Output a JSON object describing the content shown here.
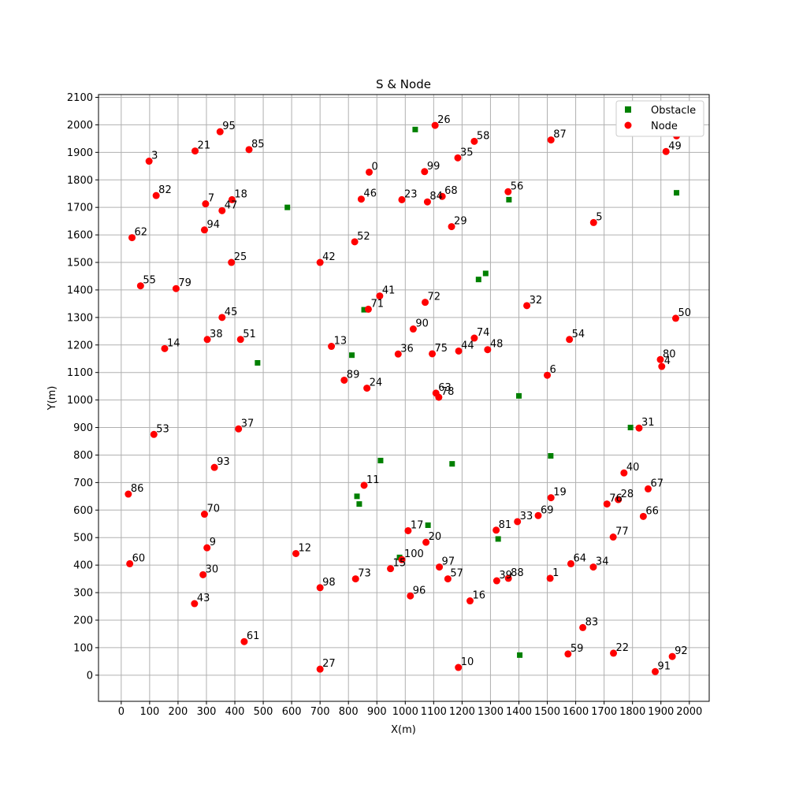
{
  "chart_data": {
    "type": "scatter",
    "title": "S & Node",
    "xlabel": "X(m)",
    "ylabel": "Y(m)",
    "xlim": [
      -80,
      2070
    ],
    "ylim": [
      -95,
      2110
    ],
    "xticks": [
      0,
      100,
      200,
      300,
      400,
      500,
      600,
      700,
      800,
      900,
      1000,
      1100,
      1200,
      1300,
      1400,
      1500,
      1600,
      1700,
      1800,
      1900,
      2000
    ],
    "yticks": [
      0,
      100,
      200,
      300,
      400,
      500,
      600,
      700,
      800,
      900,
      1000,
      1100,
      1200,
      1300,
      1400,
      1500,
      1600,
      1700,
      1800,
      1900,
      2000,
      2100
    ],
    "grid": true,
    "legend_position": "top-right",
    "series": [
      {
        "name": "Obstacle",
        "marker": "square",
        "color": "#008000",
        "points": [
          {
            "x": 1035,
            "y": 1983
          },
          {
            "x": 585,
            "y": 1700
          },
          {
            "x": 1365,
            "y": 1728
          },
          {
            "x": 1955,
            "y": 1753
          },
          {
            "x": 1283,
            "y": 1460
          },
          {
            "x": 1258,
            "y": 1438
          },
          {
            "x": 855,
            "y": 1328
          },
          {
            "x": 812,
            "y": 1163
          },
          {
            "x": 480,
            "y": 1135
          },
          {
            "x": 1400,
            "y": 1015
          },
          {
            "x": 1793,
            "y": 900
          },
          {
            "x": 913,
            "y": 780
          },
          {
            "x": 1165,
            "y": 768
          },
          {
            "x": 1512,
            "y": 797
          },
          {
            "x": 830,
            "y": 650
          },
          {
            "x": 838,
            "y": 622
          },
          {
            "x": 1080,
            "y": 545
          },
          {
            "x": 1327,
            "y": 495
          },
          {
            "x": 980,
            "y": 428
          },
          {
            "x": 1403,
            "y": 73
          }
        ]
      },
      {
        "name": "Node",
        "marker": "circle",
        "color": "#ff0000",
        "points": [
          {
            "id": "0",
            "x": 873,
            "y": 1828
          },
          {
            "id": "1",
            "x": 1510,
            "y": 352
          },
          {
            "id": "3",
            "x": 98,
            "y": 1868
          },
          {
            "id": "4",
            "x": 1903,
            "y": 1122
          },
          {
            "id": "5",
            "x": 1663,
            "y": 1645
          },
          {
            "id": "6",
            "x": 1500,
            "y": 1090
          },
          {
            "id": "7",
            "x": 297,
            "y": 1713
          },
          {
            "id": "9",
            "x": 302,
            "y": 463
          },
          {
            "id": "10",
            "x": 1187,
            "y": 28
          },
          {
            "id": "11",
            "x": 855,
            "y": 690
          },
          {
            "id": "12",
            "x": 615,
            "y": 442
          },
          {
            "id": "13",
            "x": 740,
            "y": 1195
          },
          {
            "id": "14",
            "x": 153,
            "y": 1187
          },
          {
            "id": "15",
            "x": 948,
            "y": 387
          },
          {
            "id": "16",
            "x": 1228,
            "y": 270
          },
          {
            "id": "17",
            "x": 1010,
            "y": 525
          },
          {
            "id": "18",
            "x": 390,
            "y": 1728
          },
          {
            "id": "19",
            "x": 1513,
            "y": 645
          },
          {
            "id": "20",
            "x": 1073,
            "y": 483
          },
          {
            "id": "21",
            "x": 260,
            "y": 1905
          },
          {
            "id": "22",
            "x": 1733,
            "y": 80
          },
          {
            "id": "23",
            "x": 988,
            "y": 1728
          },
          {
            "id": "24",
            "x": 865,
            "y": 1043
          },
          {
            "id": "25",
            "x": 388,
            "y": 1500
          },
          {
            "id": "26",
            "x": 1105,
            "y": 1998
          },
          {
            "id": "27",
            "x": 700,
            "y": 22
          },
          {
            "id": "28",
            "x": 1750,
            "y": 638
          },
          {
            "id": "29",
            "x": 1163,
            "y": 1630
          },
          {
            "id": "30",
            "x": 288,
            "y": 365
          },
          {
            "id": "31",
            "x": 1823,
            "y": 898
          },
          {
            "id": "32",
            "x": 1428,
            "y": 1343
          },
          {
            "id": "33",
            "x": 1395,
            "y": 558
          },
          {
            "id": "34",
            "x": 1662,
            "y": 393
          },
          {
            "id": "35",
            "x": 1185,
            "y": 1880
          },
          {
            "id": "36",
            "x": 975,
            "y": 1167
          },
          {
            "id": "37",
            "x": 413,
            "y": 895
          },
          {
            "id": "38",
            "x": 303,
            "y": 1220
          },
          {
            "id": "39",
            "x": 1322,
            "y": 343
          },
          {
            "id": "40",
            "x": 1770,
            "y": 735
          },
          {
            "id": "41",
            "x": 910,
            "y": 1378
          },
          {
            "id": "42",
            "x": 700,
            "y": 1500
          },
          {
            "id": "43",
            "x": 258,
            "y": 260
          },
          {
            "id": "44",
            "x": 1188,
            "y": 1178
          },
          {
            "id": "45",
            "x": 355,
            "y": 1300
          },
          {
            "id": "46",
            "x": 845,
            "y": 1730
          },
          {
            "id": "47",
            "x": 355,
            "y": 1688
          },
          {
            "id": "48",
            "x": 1290,
            "y": 1183
          },
          {
            "id": "49",
            "x": 1918,
            "y": 1903
          },
          {
            "id": "50",
            "x": 1952,
            "y": 1297
          },
          {
            "id": "51",
            "x": 420,
            "y": 1220
          },
          {
            "id": "52",
            "x": 822,
            "y": 1575
          },
          {
            "id": "53",
            "x": 115,
            "y": 875
          },
          {
            "id": "54",
            "x": 1578,
            "y": 1220
          },
          {
            "id": "55",
            "x": 68,
            "y": 1415
          },
          {
            "id": "56",
            "x": 1362,
            "y": 1757
          },
          {
            "id": "57",
            "x": 1150,
            "y": 350
          },
          {
            "id": "58",
            "x": 1243,
            "y": 1940
          },
          {
            "id": "59",
            "x": 1573,
            "y": 77
          },
          {
            "id": "60",
            "x": 30,
            "y": 405
          },
          {
            "id": "61",
            "x": 433,
            "y": 122
          },
          {
            "id": "62",
            "x": 38,
            "y": 1590
          },
          {
            "id": "63",
            "x": 1108,
            "y": 1025
          },
          {
            "id": "64",
            "x": 1583,
            "y": 405
          },
          {
            "id": "65",
            "x": 1955,
            "y": 1960
          },
          {
            "id": "66",
            "x": 1838,
            "y": 577
          },
          {
            "id": "67",
            "x": 1855,
            "y": 677
          },
          {
            "id": "68",
            "x": 1130,
            "y": 1740
          },
          {
            "id": "69",
            "x": 1468,
            "y": 580
          },
          {
            "id": "70",
            "x": 293,
            "y": 585
          },
          {
            "id": "71",
            "x": 870,
            "y": 1330
          },
          {
            "id": "72",
            "x": 1070,
            "y": 1355
          },
          {
            "id": "73",
            "x": 825,
            "y": 350
          },
          {
            "id": "74",
            "x": 1243,
            "y": 1225
          },
          {
            "id": "75",
            "x": 1095,
            "y": 1168
          },
          {
            "id": "76",
            "x": 1710,
            "y": 622
          },
          {
            "id": "77",
            "x": 1732,
            "y": 502
          },
          {
            "id": "78",
            "x": 1118,
            "y": 1010
          },
          {
            "id": "79",
            "x": 193,
            "y": 1405
          },
          {
            "id": "80",
            "x": 1898,
            "y": 1147
          },
          {
            "id": "81",
            "x": 1320,
            "y": 527
          },
          {
            "id": "82",
            "x": 123,
            "y": 1743
          },
          {
            "id": "83",
            "x": 1625,
            "y": 173
          },
          {
            "id": "84",
            "x": 1078,
            "y": 1720
          },
          {
            "id": "85",
            "x": 450,
            "y": 1910
          },
          {
            "id": "86",
            "x": 25,
            "y": 658
          },
          {
            "id": "87",
            "x": 1513,
            "y": 1945
          },
          {
            "id": "88",
            "x": 1363,
            "y": 352
          },
          {
            "id": "89",
            "x": 785,
            "y": 1072
          },
          {
            "id": "90",
            "x": 1028,
            "y": 1258
          },
          {
            "id": "91",
            "x": 1880,
            "y": 13
          },
          {
            "id": "92",
            "x": 1940,
            "y": 68
          },
          {
            "id": "93",
            "x": 328,
            "y": 755
          },
          {
            "id": "94",
            "x": 293,
            "y": 1618
          },
          {
            "id": "95",
            "x": 348,
            "y": 1975
          },
          {
            "id": "96",
            "x": 1018,
            "y": 288
          },
          {
            "id": "97",
            "x": 1120,
            "y": 393
          },
          {
            "id": "98",
            "x": 700,
            "y": 318
          },
          {
            "id": "99",
            "x": 1068,
            "y": 1830
          },
          {
            "id": "100",
            "x": 988,
            "y": 420
          }
        ]
      }
    ]
  }
}
